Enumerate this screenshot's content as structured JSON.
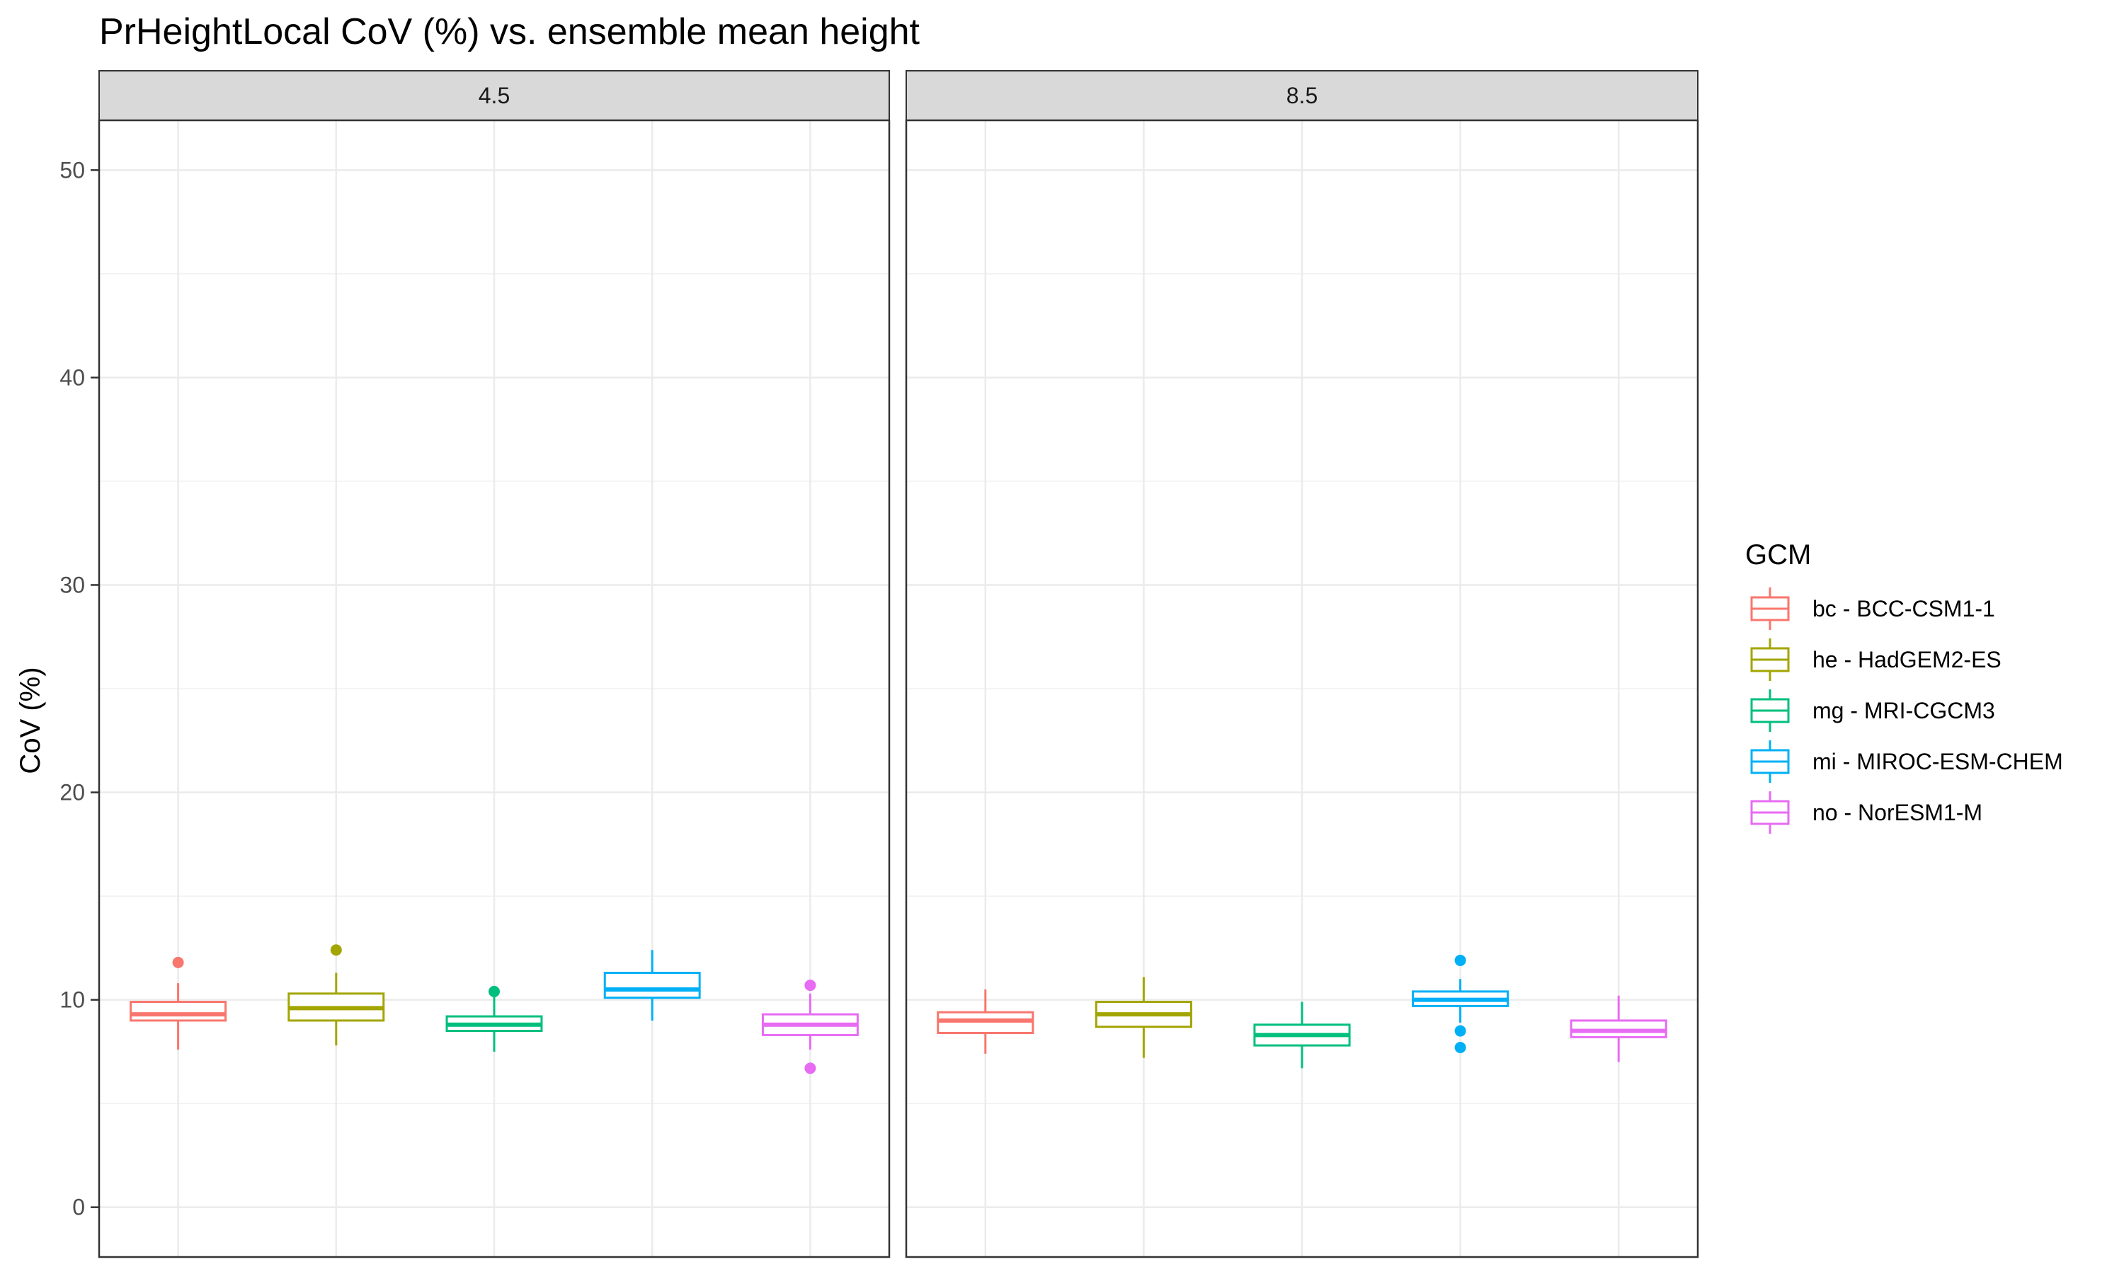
{
  "chart_data": {
    "type": "boxplot",
    "title": "PrHeightLocal CoV (%) vs. ensemble mean height",
    "ylabel": "CoV (%)",
    "xlabel": "",
    "ylim": [
      -2.4,
      52.4
    ],
    "yticks": [
      0,
      10,
      20,
      30,
      40,
      50
    ],
    "grid": true,
    "legend": {
      "title": "GCM",
      "position": "right",
      "entries": [
        {
          "label": "bc - BCC-CSM1-1",
          "color": "#F8766D"
        },
        {
          "label": "he - HadGEM2-ES",
          "color": "#A3A500"
        },
        {
          "label": "mg - MRI-CGCM3",
          "color": "#00BF7D"
        },
        {
          "label": "mi - MIROC-ESM-CHEM",
          "color": "#00B0F6"
        },
        {
          "label": "no - NorESM1-M",
          "color": "#E76BF3"
        }
      ]
    },
    "facets": [
      {
        "label": "4.5",
        "boxes": [
          {
            "gcm": "bc",
            "lower_whisker": 7.6,
            "q1": 9.0,
            "median": 9.3,
            "q3": 9.9,
            "upper_whisker": 10.8,
            "outliers": [
              11.8
            ]
          },
          {
            "gcm": "he",
            "lower_whisker": 7.8,
            "q1": 9.0,
            "median": 9.6,
            "q3": 10.3,
            "upper_whisker": 11.3,
            "outliers": [
              12.4
            ]
          },
          {
            "gcm": "mg",
            "lower_whisker": 7.5,
            "q1": 8.5,
            "median": 8.8,
            "q3": 9.2,
            "upper_whisker": 10.2,
            "outliers": [
              10.4
            ]
          },
          {
            "gcm": "mi",
            "lower_whisker": 9.0,
            "q1": 10.1,
            "median": 10.5,
            "q3": 11.3,
            "upper_whisker": 12.4,
            "outliers": []
          },
          {
            "gcm": "no",
            "lower_whisker": 7.6,
            "q1": 8.3,
            "median": 8.8,
            "q3": 9.3,
            "upper_whisker": 10.3,
            "outliers": [
              10.7,
              6.7
            ]
          }
        ]
      },
      {
        "label": "8.5",
        "boxes": [
          {
            "gcm": "bc",
            "lower_whisker": 7.4,
            "q1": 8.4,
            "median": 9.0,
            "q3": 9.4,
            "upper_whisker": 10.5,
            "outliers": []
          },
          {
            "gcm": "he",
            "lower_whisker": 7.2,
            "q1": 8.7,
            "median": 9.3,
            "q3": 9.9,
            "upper_whisker": 11.1,
            "outliers": []
          },
          {
            "gcm": "mg",
            "lower_whisker": 6.7,
            "q1": 7.8,
            "median": 8.3,
            "q3": 8.8,
            "upper_whisker": 9.9,
            "outliers": []
          },
          {
            "gcm": "mi",
            "lower_whisker": 8.9,
            "q1": 9.7,
            "median": 10.0,
            "q3": 10.4,
            "upper_whisker": 11.0,
            "outliers": [
              11.9,
              8.5,
              7.7
            ]
          },
          {
            "gcm": "no",
            "lower_whisker": 7.0,
            "q1": 8.2,
            "median": 8.5,
            "q3": 9.0,
            "upper_whisker": 10.2,
            "outliers": []
          }
        ]
      }
    ]
  }
}
